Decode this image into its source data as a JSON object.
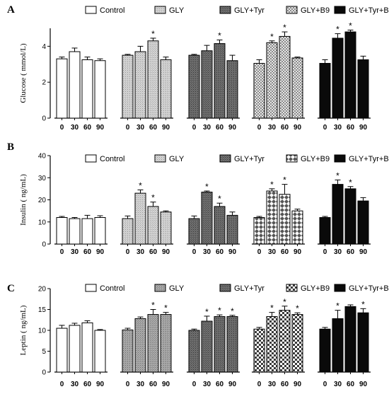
{
  "chart_data": [
    {
      "type": "bar",
      "panel": "A",
      "ylabel": "Glucose ( mmol/L)",
      "ylim": [
        0,
        5
      ],
      "yticks": [
        0,
        2,
        4
      ],
      "categories": [
        "0",
        "30",
        "60",
        "90"
      ],
      "legend_position": "top",
      "series": [
        {
          "name": "Control",
          "pattern": "white",
          "values": [
            3.3,
            3.7,
            3.25,
            3.2
          ],
          "errors": [
            0.1,
            0.2,
            0.15,
            0.1
          ],
          "significant": [
            false,
            false,
            false,
            false
          ]
        },
        {
          "name": "GLY",
          "pattern": "lightgray",
          "values": [
            3.5,
            3.7,
            4.3,
            3.25
          ],
          "errors": [
            0.05,
            0.3,
            0.15,
            0.15
          ],
          "significant": [
            false,
            false,
            true,
            false
          ]
        },
        {
          "name": "GLY+Tyr",
          "pattern": "darkgray",
          "values": [
            3.5,
            3.75,
            4.15,
            3.2
          ],
          "errors": [
            0.05,
            0.3,
            0.2,
            0.3
          ],
          "significant": [
            false,
            false,
            true,
            false
          ]
        },
        {
          "name": "GLY+B9",
          "pattern": "dots",
          "values": [
            3.05,
            4.2,
            4.55,
            3.35
          ],
          "errors": [
            0.2,
            0.1,
            0.25,
            0.05
          ],
          "significant": [
            false,
            true,
            true,
            false
          ]
        },
        {
          "name": "GLY+Tyr+B9",
          "pattern": "black",
          "values": [
            3.05,
            4.45,
            4.8,
            3.25
          ],
          "errors": [
            0.2,
            0.25,
            0.1,
            0.2
          ],
          "significant": [
            false,
            true,
            true,
            false
          ]
        }
      ]
    },
    {
      "type": "bar",
      "panel": "B",
      "ylabel": "Insulin ( ng/mL)",
      "ylim": [
        0,
        40
      ],
      "yticks": [
        0,
        10,
        20,
        30,
        40
      ],
      "categories": [
        "0",
        "30",
        "60",
        "90"
      ],
      "legend_position": "top",
      "series": [
        {
          "name": "Control",
          "pattern": "white",
          "values": [
            12.0,
            11.5,
            11.5,
            12.0
          ],
          "errors": [
            0.5,
            0.5,
            1.5,
            0.8
          ],
          "significant": [
            false,
            false,
            false,
            false
          ]
        },
        {
          "name": "GLY",
          "pattern": "lightgray",
          "values": [
            11.5,
            23.0,
            17.0,
            14.5
          ],
          "errors": [
            1.2,
            1.5,
            2.0,
            0.5
          ],
          "significant": [
            false,
            true,
            true,
            false
          ]
        },
        {
          "name": "GLY+Tyr",
          "pattern": "darkgray",
          "values": [
            11.5,
            23.5,
            17.0,
            13.0
          ],
          "errors": [
            1.2,
            0.5,
            1.5,
            1.5
          ],
          "significant": [
            false,
            true,
            true,
            false
          ]
        },
        {
          "name": "GLY+B9",
          "pattern": "diamonds",
          "values": [
            12.0,
            24.0,
            22.5,
            15.0
          ],
          "errors": [
            0.5,
            1.0,
            4.5,
            0.8
          ],
          "significant": [
            false,
            true,
            true,
            false
          ]
        },
        {
          "name": "GLY+Tyr+B9",
          "pattern": "black",
          "values": [
            12.0,
            27.0,
            25.0,
            19.5
          ],
          "errors": [
            0.5,
            2.0,
            1.0,
            1.5
          ],
          "significant": [
            false,
            true,
            true,
            false
          ]
        }
      ]
    },
    {
      "type": "bar",
      "panel": "C",
      "ylabel": "Leptin ( ng/mL)",
      "ylim": [
        0,
        20
      ],
      "yticks": [
        0,
        5,
        10,
        15,
        20
      ],
      "categories": [
        "0",
        "30",
        "60",
        "90"
      ],
      "legend_position": "top",
      "series": [
        {
          "name": "Control",
          "pattern": "white",
          "values": [
            10.5,
            11.2,
            11.8,
            10.0
          ],
          "errors": [
            0.7,
            0.5,
            0.5,
            0.2
          ],
          "significant": [
            false,
            false,
            false,
            false
          ]
        },
        {
          "name": "GLY",
          "pattern": "midgray",
          "values": [
            10.1,
            12.8,
            13.8,
            13.8
          ],
          "errors": [
            0.4,
            0.4,
            1.2,
            0.5
          ],
          "significant": [
            false,
            false,
            true,
            true
          ]
        },
        {
          "name": "GLY+Tyr",
          "pattern": "darkgray",
          "values": [
            10.0,
            12.2,
            13.3,
            13.3
          ],
          "errors": [
            0.3,
            1.2,
            0.4,
            0.3
          ],
          "significant": [
            false,
            true,
            true,
            true
          ]
        },
        {
          "name": "GLY+B9",
          "pattern": "checker",
          "values": [
            10.3,
            13.3,
            14.8,
            13.8
          ],
          "errors": [
            0.4,
            1.0,
            1.0,
            0.4
          ],
          "significant": [
            false,
            true,
            true,
            true
          ]
        },
        {
          "name": "GLY+Tyr+B9",
          "pattern": "black",
          "values": [
            10.3,
            12.8,
            15.7,
            14.2
          ],
          "errors": [
            0.4,
            2.0,
            0.4,
            1.0
          ],
          "significant": [
            false,
            true,
            false,
            true
          ]
        }
      ]
    }
  ]
}
